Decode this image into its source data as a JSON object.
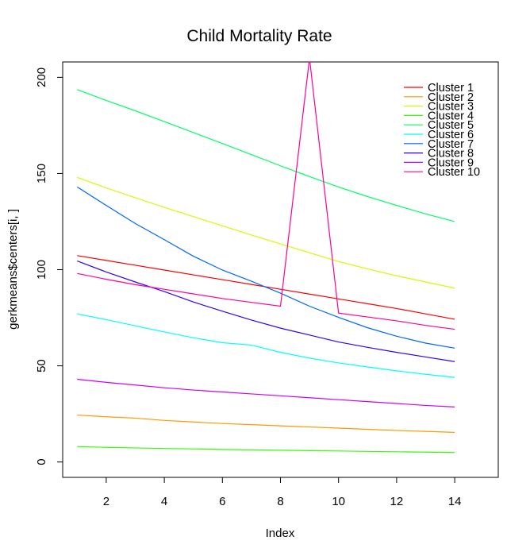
{
  "chart_data": {
    "type": "line",
    "title": "Child Mortality Rate",
    "xlabel": "Index",
    "ylabel": "gerkmeans$centers[i, ]",
    "xlim": [
      0.5,
      15.5
    ],
    "ylim": [
      -8,
      208
    ],
    "x": [
      1,
      2,
      3,
      4,
      5,
      6,
      7,
      8,
      9,
      10,
      11,
      12,
      13,
      14
    ],
    "x_ticks": [
      2,
      4,
      6,
      8,
      10,
      12,
      14
    ],
    "y_ticks": [
      0,
      50,
      100,
      150,
      200
    ],
    "legend_position": "top-right",
    "grid": false,
    "series": [
      {
        "name": "Cluster 1",
        "color": "#FF0000",
        "values": [
          107.3,
          104.8,
          102.3,
          99.8,
          97.3,
          94.8,
          92.3,
          89.8,
          87.3,
          84.8,
          82.3,
          79.8,
          77.0,
          74.2
        ]
      },
      {
        "name": "Cluster 2",
        "color": "#FF9900",
        "values": [
          24.4,
          23.5,
          22.8,
          21.6,
          20.8,
          20.0,
          19.4,
          18.8,
          18.2,
          17.6,
          17.0,
          16.4,
          15.9,
          15.4
        ]
      },
      {
        "name": "Cluster 3",
        "color": "#CCFF00",
        "values": [
          148.0,
          142.5,
          137.4,
          132.4,
          127.6,
          122.8,
          118.0,
          113.4,
          108.8,
          104.2,
          100.4,
          96.8,
          93.6,
          90.4
        ]
      },
      {
        "name": "Cluster 4",
        "color": "#33FF00",
        "values": [
          8.0,
          7.6,
          7.3,
          7.0,
          6.8,
          6.5,
          6.3,
          6.1,
          5.9,
          5.7,
          5.5,
          5.3,
          5.1,
          4.9
        ]
      },
      {
        "name": "Cluster 5",
        "color": "#00FF66",
        "values": [
          193.6,
          188.0,
          182.6,
          177.0,
          171.3,
          165.6,
          159.8,
          154.0,
          148.4,
          143.0,
          138.0,
          133.4,
          129.0,
          125.0
        ]
      },
      {
        "name": "Cluster 6",
        "color": "#00FFFF",
        "values": [
          77.0,
          74.0,
          70.8,
          67.6,
          64.6,
          62.0,
          60.8,
          57.0,
          54.0,
          51.5,
          49.4,
          47.4,
          45.6,
          44.0
        ]
      },
      {
        "name": "Cluster 7",
        "color": "#0066FF",
        "values": [
          143.0,
          133.4,
          124.0,
          115.6,
          107.0,
          99.8,
          94.0,
          87.8,
          81.0,
          75.2,
          69.8,
          65.4,
          61.8,
          59.2
        ]
      },
      {
        "name": "Cluster 8",
        "color": "#3300FF",
        "values": [
          104.5,
          98.8,
          93.6,
          88.6,
          83.2,
          78.4,
          73.8,
          69.6,
          66.0,
          62.4,
          59.6,
          57.0,
          54.6,
          52.2
        ]
      },
      {
        "name": "Cluster 9",
        "color": "#CC00FF",
        "values": [
          43.0,
          41.4,
          40.0,
          38.6,
          37.4,
          36.4,
          35.4,
          34.4,
          33.4,
          32.4,
          31.4,
          30.4,
          29.4,
          28.6
        ]
      },
      {
        "name": "Cluster 10",
        "color": "#FF0099",
        "values": [
          98.0,
          95.0,
          92.2,
          89.8,
          87.4,
          85.0,
          83.0,
          81.0,
          210.0,
          77.4,
          75.4,
          73.4,
          71.0,
          69.0
        ]
      }
    ]
  }
}
